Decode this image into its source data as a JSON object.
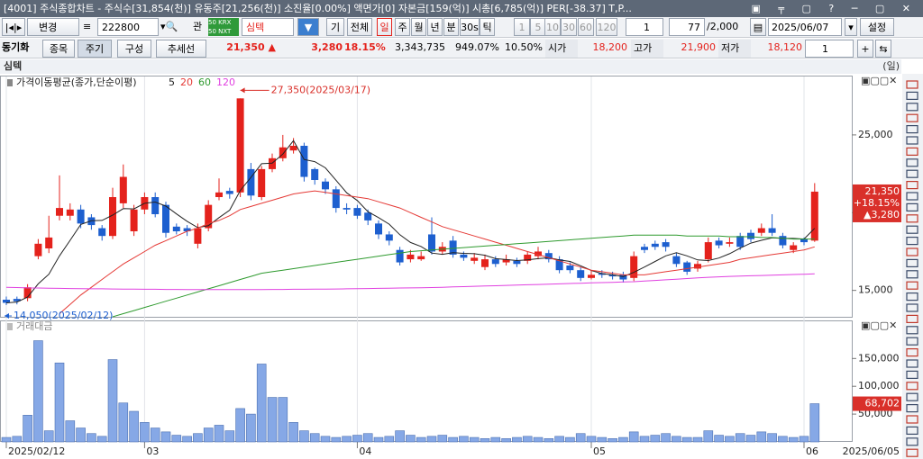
{
  "window": {
    "title": "[4001] 주식종합차트 - 주식수[31,854(천)] 유동주[21,256(천)] 소진율[0.00%] 액면가[0] 자본금[159(억)] 시총[6,785(억)] PER[-38.37] T,P..."
  },
  "toolbar": {
    "row1": {
      "change": "변경",
      "code": "222800",
      "watch": "관",
      "name": "심텍",
      "basic": "기",
      "all": "전체",
      "periods": [
        "일",
        "주",
        "월",
        "년",
        "분",
        "30s",
        "틱"
      ],
      "units": [
        "1",
        "5",
        "10",
        "30",
        "60",
        "120"
      ],
      "unit_value": "1",
      "count": "77",
      "count_max": "/2,000",
      "date": "2025/06/07",
      "settings": "설정"
    },
    "row2": {
      "sync": "동기화",
      "buttons": [
        "종목",
        "주기",
        "구성",
        "추세선"
      ],
      "price": "21,350 ▲",
      "change": "3,280",
      "rate": "18.15%",
      "volume": "3,343,735",
      "vol_rate": "949.07%",
      "turnover": "10.50%",
      "open_label": "시가",
      "open": "18,200",
      "high_label": "고가",
      "high": "21,900",
      "low_label": "저가",
      "low": "18,120",
      "select": "1"
    }
  },
  "chart_data": [
    {
      "type": "candlestick",
      "title": "심텍",
      "period": "(일)",
      "legend_title": "가격이동평균(종가,단순이평)",
      "categories": [
        "2025/02/12",
        null,
        null,
        null,
        null,
        null,
        null,
        null,
        null,
        null,
        null,
        null,
        null,
        "03",
        null,
        null,
        null,
        null,
        null,
        null,
        null,
        null,
        null,
        null,
        null,
        null,
        null,
        null,
        null,
        null,
        null,
        null,
        null,
        "04",
        null,
        null,
        null,
        null,
        null,
        null,
        null,
        null,
        null,
        null,
        null,
        null,
        null,
        null,
        null,
        null,
        null,
        null,
        null,
        null,
        null,
        "05",
        null,
        null,
        null,
        null,
        null,
        null,
        null,
        null,
        null,
        null,
        null,
        null,
        null,
        null,
        null,
        null,
        null,
        null,
        null,
        "06",
        "2025/06/05"
      ],
      "open": [
        14400,
        14450,
        14500,
        17200,
        17700,
        19800,
        19800,
        20200,
        19700,
        19000,
        18500,
        20600,
        18800,
        20200,
        21000,
        20500,
        19100,
        19000,
        18000,
        19000,
        21000,
        21400,
        21300,
        22800,
        21000,
        22800,
        23500,
        24000,
        24300,
        22800,
        22000,
        21500,
        20300,
        20300,
        20000,
        19300,
        18600,
        17600,
        17000,
        17000,
        18600,
        17500,
        18200,
        17300,
        16900,
        16500,
        17000,
        16800,
        16900,
        16900,
        17200,
        17400,
        17000,
        16600,
        16300,
        15800,
        16100,
        16000,
        16000,
        15800,
        17800,
        18000,
        18100,
        17200,
        16800,
        16400,
        17000,
        18200,
        18000,
        18500,
        18700,
        18700,
        19000,
        18500,
        17600,
        18300,
        18200
      ],
      "high": [
        14600,
        14600,
        15400,
        18300,
        19800,
        22400,
        20600,
        20500,
        19900,
        19200,
        21600,
        23100,
        20500,
        21300,
        21300,
        20700,
        19300,
        19200,
        19300,
        20800,
        22200,
        21600,
        27350,
        23200,
        23000,
        23800,
        25000,
        24800,
        24500,
        22900,
        22200,
        21700,
        20600,
        20500,
        20200,
        19500,
        18800,
        17800,
        17600,
        17500,
        19700,
        18100,
        18500,
        17500,
        17400,
        17300,
        17200,
        17300,
        17100,
        17500,
        17800,
        17600,
        17200,
        16800,
        16500,
        16300,
        16300,
        16200,
        16200,
        17500,
        18000,
        18200,
        18300,
        17400,
        16900,
        16900,
        18400,
        18400,
        18400,
        18700,
        18900,
        19300,
        19900,
        18700,
        18100,
        18400,
        21900
      ],
      "low": [
        14050,
        14100,
        14300,
        17000,
        17400,
        19500,
        19500,
        19000,
        18900,
        18200,
        18300,
        20300,
        18500,
        19900,
        19700,
        18400,
        18600,
        18500,
        17700,
        18800,
        20800,
        20900,
        21000,
        20800,
        20800,
        22600,
        23300,
        23800,
        22000,
        21800,
        21200,
        20000,
        19900,
        19600,
        19200,
        18300,
        17900,
        16600,
        16800,
        16900,
        17300,
        17300,
        17100,
        16900,
        16700,
        16300,
        16500,
        16600,
        16500,
        16700,
        17000,
        16800,
        16100,
        16100,
        15600,
        15700,
        15800,
        15700,
        15500,
        15600,
        17400,
        17600,
        17500,
        16500,
        16000,
        16200,
        16800,
        17700,
        17800,
        17600,
        18100,
        18500,
        18500,
        17700,
        17400,
        17900,
        18120
      ],
      "close": [
        14200,
        14300,
        15200,
        18000,
        18400,
        20300,
        20200,
        19300,
        19200,
        18500,
        21000,
        22300,
        20200,
        21000,
        19900,
        18700,
        18800,
        18800,
        19000,
        20500,
        21300,
        21200,
        27350,
        21100,
        22800,
        23500,
        24200,
        24300,
        22300,
        22100,
        21500,
        20300,
        20200,
        19800,
        19500,
        18600,
        18200,
        16800,
        17300,
        17200,
        17500,
        17800,
        17300,
        17100,
        17100,
        17000,
        16700,
        17000,
        16700,
        17300,
        17500,
        17000,
        16300,
        16300,
        15800,
        16000,
        16000,
        15900,
        15700,
        17200,
        17600,
        17800,
        17800,
        16700,
        16200,
        16700,
        18100,
        17900,
        18100,
        17800,
        18300,
        19000,
        18700,
        17900,
        17900,
        18100,
        21350
      ],
      "up_color": "#e4221c",
      "down_color": "#1d5fcf",
      "series": [
        {
          "name": "5",
          "color": "#222222",
          "values": [
            14200,
            14250,
            14570,
            15420,
            16040,
            17220,
            18220,
            19240,
            19480,
            19500,
            19840,
            20260,
            20240,
            20600,
            20680,
            20420,
            19920,
            19440,
            19040,
            19160,
            19680,
            20160,
            21430,
            22270,
            23150,
            23190,
            23770,
            24630,
            23420,
            23280,
            22880,
            22080,
            21280,
            20780,
            20060,
            19680,
            19260,
            18580,
            18080,
            17820,
            17400,
            17320,
            17420,
            17380,
            17360,
            17260,
            17040,
            16980,
            16920,
            16960,
            17040,
            17100,
            16960,
            16860,
            16580,
            16280,
            16080,
            16000,
            15880,
            16160,
            16500,
            16860,
            17220,
            17420,
            17220,
            16960,
            16920,
            17080,
            17360,
            17720,
            18040,
            18220,
            18380,
            18340,
            18340,
            18300,
            18990
          ]
        },
        {
          "name": "20",
          "color": "#e53935",
          "values": [
            null,
            null,
            null,
            null,
            null,
            13500,
            14100,
            14700,
            15200,
            15700,
            16200,
            16700,
            17100,
            17500,
            17900,
            18200,
            18500,
            18800,
            19000,
            19300,
            19500,
            19800,
            20200,
            20400,
            20600,
            20800,
            21000,
            21200,
            21300,
            21400,
            21300,
            21200,
            21100,
            21000,
            20900,
            20700,
            20500,
            20300,
            20000,
            19700,
            19400,
            19100,
            18900,
            18700,
            18500,
            18300,
            18100,
            17900,
            17700,
            17500,
            17300,
            17100,
            16900,
            16700,
            16500,
            16300,
            16200,
            16100,
            16000,
            16000,
            16000,
            16100,
            16200,
            16300,
            16400,
            16500,
            16600,
            16700,
            16800,
            17000,
            17100,
            17200,
            17300,
            17400,
            17500,
            17600,
            17800
          ]
        },
        {
          "name": "60",
          "color": "#2e9a2e",
          "values": [
            null,
            null,
            null,
            null,
            null,
            null,
            null,
            null,
            null,
            null,
            13300,
            13500,
            13700,
            13900,
            14100,
            14300,
            14500,
            14700,
            14900,
            15100,
            15300,
            15500,
            15700,
            15900,
            16100,
            16200,
            16300,
            16400,
            16500,
            16600,
            16700,
            16800,
            16900,
            17000,
            17100,
            17200,
            17300,
            17400,
            17500,
            17550,
            17600,
            17650,
            17700,
            17750,
            17800,
            17850,
            17900,
            17950,
            18000,
            18050,
            18100,
            18150,
            18200,
            18250,
            18300,
            18350,
            18400,
            18450,
            18500,
            18550,
            18550,
            18550,
            18550,
            18550,
            18500,
            18500,
            18500,
            18500,
            18450,
            18450,
            18450,
            18400,
            18400,
            18350,
            18300,
            18300,
            18300
          ]
        },
        {
          "name": "120",
          "color": "#e040e0",
          "values": [
            15200,
            15180,
            15160,
            15150,
            15140,
            15130,
            15120,
            15110,
            15100,
            15100,
            15090,
            15080,
            15080,
            15070,
            15070,
            15060,
            15060,
            15050,
            15050,
            15050,
            15050,
            15050,
            15050,
            15050,
            15050,
            15060,
            15060,
            15070,
            15070,
            15080,
            15080,
            15090,
            15100,
            15110,
            15120,
            15130,
            15140,
            15150,
            15160,
            15170,
            15180,
            15200,
            15220,
            15240,
            15260,
            15280,
            15300,
            15320,
            15340,
            15360,
            15380,
            15400,
            15420,
            15440,
            15460,
            15480,
            15500,
            15520,
            15540,
            15560,
            15600,
            15640,
            15680,
            15720,
            15760,
            15800,
            15840,
            15870,
            15900,
            15920,
            15940,
            15960,
            15980,
            16000,
            16020,
            16040,
            16060
          ]
        }
      ],
      "ylim": [
        13300,
        28700
      ],
      "yticks": [
        {
          "value": 15000,
          "label": "15,000"
        },
        {
          "value": 20000,
          "label": "20,000"
        },
        {
          "value": 25000,
          "label": "25,000"
        }
      ],
      "annotations": [
        "27,350(2025/03/17)",
        "14,050(2025/02/12)"
      ],
      "last_labels": [
        "21,350",
        "+18.15%",
        "▲3,280"
      ]
    },
    {
      "type": "bar",
      "title": "거래대금",
      "color": "#86a8e6",
      "values": [
        8000,
        10000,
        48000,
        182000,
        20000,
        142000,
        38000,
        25000,
        15000,
        10000,
        148000,
        70000,
        55000,
        35000,
        25000,
        18000,
        12000,
        10000,
        15000,
        25000,
        30000,
        20000,
        60000,
        50000,
        140000,
        80000,
        80000,
        35000,
        20000,
        15000,
        10000,
        8000,
        10000,
        12000,
        15000,
        8000,
        10000,
        20000,
        12000,
        8000,
        10000,
        12000,
        8000,
        10000,
        8000,
        6000,
        8000,
        6000,
        8000,
        10000,
        8000,
        6000,
        10000,
        8000,
        15000,
        10000,
        8000,
        6000,
        8000,
        18000,
        10000,
        12000,
        15000,
        10000,
        8000,
        8000,
        20000,
        12000,
        10000,
        15000,
        12000,
        18000,
        15000,
        10000,
        8000,
        10000,
        68702
      ],
      "value_labels": [
        null,
        null,
        null,
        null,
        null,
        null,
        null,
        null,
        null,
        null,
        null,
        null,
        null,
        null,
        null,
        null,
        null,
        null,
        null,
        null,
        null,
        null,
        null,
        null,
        null,
        null,
        null,
        null,
        null,
        null,
        null,
        null,
        null,
        null,
        null,
        null,
        null,
        null,
        null,
        null,
        null,
        null,
        null,
        null,
        null,
        null,
        null,
        null,
        null,
        null,
        null,
        null,
        null,
        null,
        null,
        null,
        null,
        null,
        null,
        null,
        null,
        null,
        null,
        null,
        null,
        null,
        null,
        null,
        null,
        null,
        null,
        null,
        null,
        null,
        null,
        null,
        "68,702"
      ],
      "ylim": [
        0,
        212000
      ],
      "yticks": [
        {
          "value": 50000,
          "label": "50,000"
        },
        {
          "value": 100000,
          "label": "100,000"
        },
        {
          "value": 150000,
          "label": "150,000"
        }
      ]
    }
  ]
}
